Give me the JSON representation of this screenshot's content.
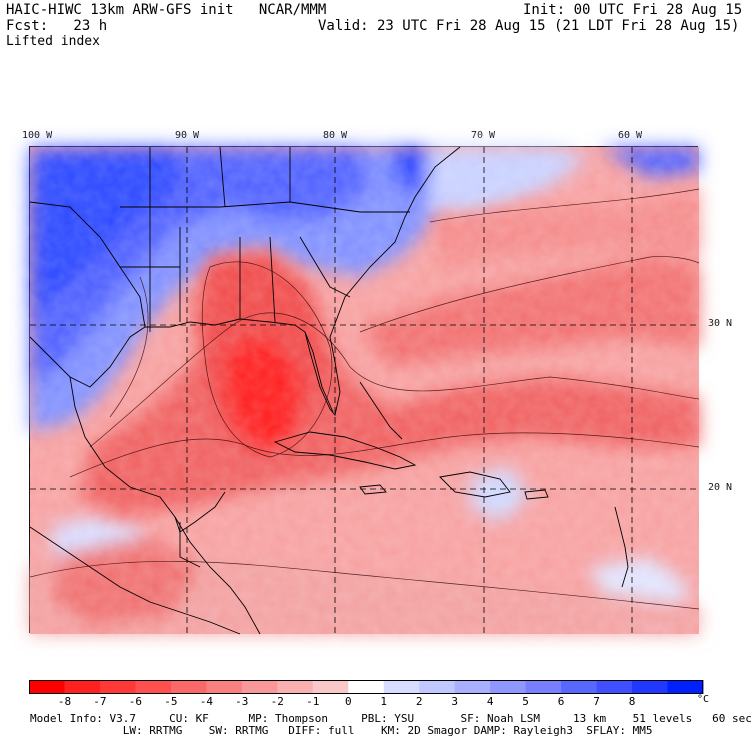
{
  "header": {
    "model_line": "HAIC-HIWC 13km ARW-GFS init   NCAR/MMM",
    "init_line": "Init: 00 UTC Fri 28 Aug 15",
    "fcst_line": "Fcst:   23 h",
    "valid_line": "Valid: 23 UTC Fri 28 Aug 15 (21 LDT Fri 28 Aug 15)",
    "field_name": "Lifted index"
  },
  "map": {
    "longitude_labels": [
      "100 W",
      "90 W",
      "80 W",
      "70 W",
      "60 W"
    ],
    "latitude_labels": [
      "30 N",
      "20 N"
    ],
    "colors": {
      "deep_red": "#ff0000",
      "mid_red": "#f06060",
      "light_red": "#f7a0a0",
      "pale_pink": "#fad0d0",
      "neutral": "#ffffff",
      "pale_blue": "#d0d8ff",
      "mid_blue": "#8090ff",
      "deep_blue": "#2040ff"
    }
  },
  "colorbar": {
    "tick_labels": [
      "-8",
      "-7",
      "-6",
      "-5",
      "-4",
      "-3",
      "-2",
      "-1",
      "0",
      "1",
      "2",
      "3",
      "4",
      "5",
      "6",
      "7",
      "8"
    ],
    "unit": "°C",
    "colors": [
      "#ff0000",
      "#ff2020",
      "#ff3838",
      "#ff5050",
      "#fb6868",
      "#f88080",
      "#f89898",
      "#f9b0b0",
      "#fac8c8",
      "#ffffff",
      "#d8dcff",
      "#c0c8ff",
      "#a8b0ff",
      "#9098ff",
      "#7880ff",
      "#5868ff",
      "#4050ff",
      "#2038ff",
      "#0020ff"
    ]
  },
  "model_info": {
    "line1": "Model Info: V3.7     CU: KF      MP: Thompson     PBL: YSU       SF: Noah LSM     13 km    51 levels   60 sec",
    "line2": "              LW: RRTMG    SW: RRTMG   DIFF: full    KM: 2D Smagor DAMP: Rayleigh3  SFLAY: MM5"
  }
}
